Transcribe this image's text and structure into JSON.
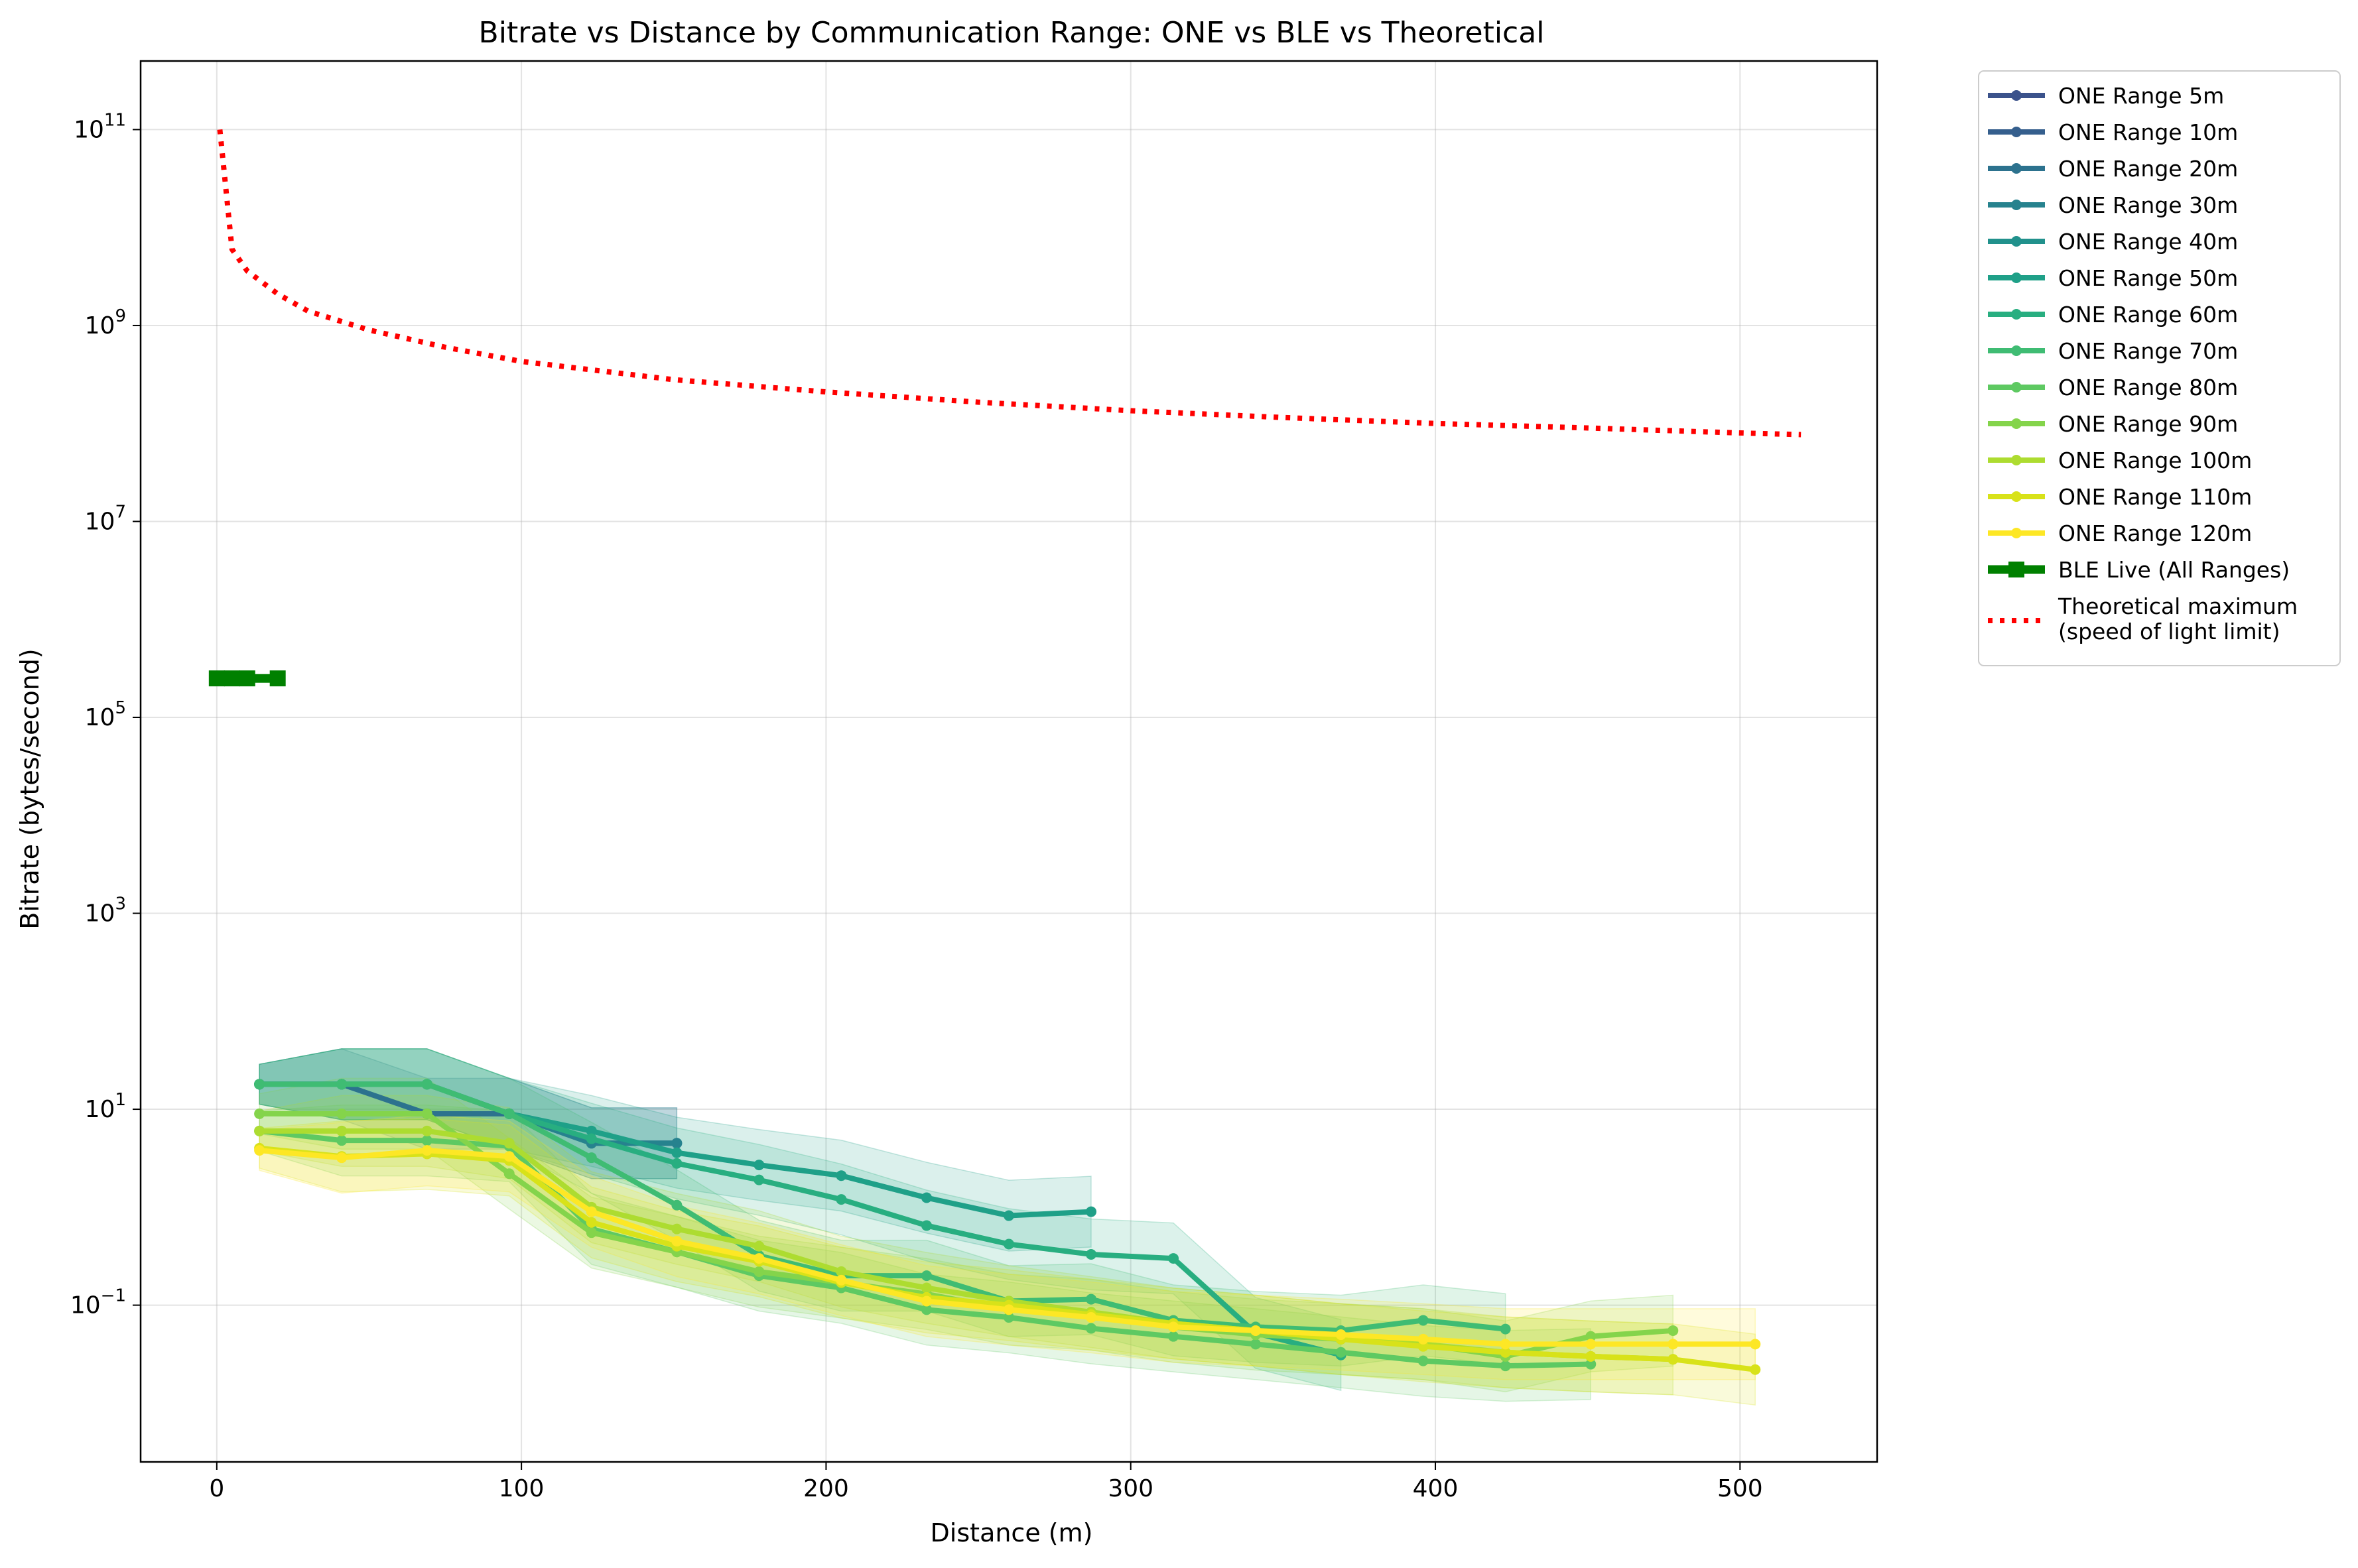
{
  "chart_data": {
    "type": "line",
    "title": "Bitrate vs Distance by Communication Range: ONE vs BLE vs Theoretical",
    "xlabel": "Distance (m)",
    "ylabel": "Bitrate (bytes/second)",
    "xlim": [
      -25,
      545
    ],
    "ylim_log10": [
      -2.6,
      11.7
    ],
    "y_scale": "log",
    "grid": true,
    "legend_position": "outside-right-top",
    "x_ticks": [
      {
        "value": 0,
        "label": "0"
      },
      {
        "value": 100,
        "label": "100"
      },
      {
        "value": 200,
        "label": "200"
      },
      {
        "value": 300,
        "label": "300"
      },
      {
        "value": 400,
        "label": "400"
      },
      {
        "value": 500,
        "label": "500"
      }
    ],
    "y_ticks": [
      {
        "exp": 11,
        "base": "10",
        "sup": "11"
      },
      {
        "exp": 9,
        "base": "10",
        "sup": "9"
      },
      {
        "exp": 7,
        "base": "10",
        "sup": "7"
      },
      {
        "exp": 5,
        "base": "10",
        "sup": "5"
      },
      {
        "exp": 3,
        "base": "10",
        "sup": "3"
      },
      {
        "exp": 1,
        "base": "10",
        "sup": "1"
      },
      {
        "exp": -1,
        "base": "10",
        "sup": "−1"
      }
    ],
    "series": [
      {
        "name": "ONE Range 5m",
        "color": "#3b528b",
        "x": [],
        "y": []
      },
      {
        "name": "ONE Range 10m",
        "color": "#355f8d",
        "x": [],
        "y": []
      },
      {
        "name": "ONE Range 20m",
        "color": "#2c728e",
        "x": [
          14,
          41,
          69,
          96,
          123,
          151
        ],
        "y": [
          18,
          18,
          9,
          9,
          4.5,
          4.5
        ]
      },
      {
        "name": "ONE Range 30m",
        "color": "#26828e",
        "x": [
          14,
          41,
          69,
          96,
          123,
          151
        ],
        "y": [
          18,
          18,
          18,
          9,
          4.5,
          4.5
        ]
      },
      {
        "name": "ONE Range 40m",
        "color": "#21918c",
        "x": [],
        "y": []
      },
      {
        "name": "ONE Range 50m",
        "color": "#1fa088",
        "x": [
          14,
          41,
          69,
          96,
          123,
          151,
          178,
          205,
          233,
          260,
          287
        ],
        "y": [
          18,
          18,
          18,
          9,
          6,
          3.6,
          2.7,
          2.1,
          1.25,
          0.82,
          0.9
        ]
      },
      {
        "name": "ONE Range 60m",
        "color": "#28ae80",
        "x": [
          14,
          41,
          69,
          96,
          123,
          151,
          178,
          205,
          233,
          260,
          287,
          314,
          341,
          369
        ],
        "y": [
          18,
          18,
          18,
          9,
          5,
          2.8,
          1.9,
          1.2,
          0.65,
          0.42,
          0.33,
          0.3,
          0.052,
          0.031
        ]
      },
      {
        "name": "ONE Range 70m",
        "color": "#3fbc73",
        "x": [
          14,
          41,
          69,
          96,
          123,
          151,
          178,
          205,
          233,
          260,
          287,
          314,
          341,
          369,
          396,
          423
        ],
        "y": [
          18,
          18,
          18,
          9,
          3.2,
          1.05,
          0.32,
          0.2,
          0.2,
          0.11,
          0.115,
          0.07,
          0.06,
          0.055,
          0.07,
          0.057
        ]
      },
      {
        "name": "ONE Range 80m",
        "color": "#5ec962",
        "x": [
          14,
          41,
          69,
          96,
          123,
          151,
          178,
          205,
          233,
          260,
          287,
          314,
          341,
          369,
          396,
          423,
          451
        ],
        "y": [
          6,
          4.8,
          4.8,
          4.2,
          0.6,
          0.35,
          0.2,
          0.15,
          0.09,
          0.075,
          0.058,
          0.048,
          0.04,
          0.033,
          0.027,
          0.024,
          0.025
        ]
      },
      {
        "name": "ONE Range 90m",
        "color": "#84d44b",
        "x": [
          14,
          41,
          69,
          96,
          123,
          151,
          178,
          205,
          233,
          260,
          287,
          314,
          341,
          369,
          396,
          423,
          451,
          478
        ],
        "y": [
          9,
          9,
          9,
          2.2,
          0.55,
          0.35,
          0.22,
          0.17,
          0.13,
          0.09,
          0.08,
          0.06,
          0.05,
          0.045,
          0.04,
          0.03,
          0.048,
          0.055
        ]
      },
      {
        "name": "ONE Range 100m",
        "color": "#addc30",
        "x": [
          14,
          41,
          69,
          96,
          123,
          151,
          178,
          205,
          233,
          260,
          287,
          314,
          341,
          369,
          396,
          423,
          451,
          478
        ],
        "y": [
          6,
          6,
          6,
          4.5,
          1.0,
          0.6,
          0.4,
          0.22,
          0.15,
          0.11,
          0.085,
          0.065,
          0.055,
          0.045,
          0.04,
          0.033,
          0.03,
          0.028
        ]
      },
      {
        "name": "ONE Range 110m",
        "color": "#d8e219",
        "x": [
          14,
          41,
          69,
          96,
          123,
          151,
          178,
          205,
          233,
          260,
          287,
          314,
          341,
          369,
          396,
          423,
          451,
          478,
          505
        ],
        "y": [
          4,
          3.3,
          3.5,
          3,
          0.7,
          0.4,
          0.28,
          0.17,
          0.12,
          0.1,
          0.08,
          0.065,
          0.055,
          0.045,
          0.038,
          0.033,
          0.03,
          0.028,
          0.022
        ]
      },
      {
        "name": "ONE Range 120m",
        "color": "#fde725",
        "x": [
          14,
          41,
          69,
          96,
          123,
          151,
          178,
          205,
          233,
          260,
          287,
          314,
          341,
          369,
          396,
          423,
          451,
          478,
          505
        ],
        "y": [
          3.8,
          3.2,
          3.8,
          3.3,
          0.9,
          0.45,
          0.3,
          0.18,
          0.11,
          0.09,
          0.075,
          0.06,
          0.055,
          0.05,
          0.045,
          0.04,
          0.04,
          0.04,
          0.04
        ]
      },
      {
        "name": "BLE Live (All Ranges)",
        "color": "#008000",
        "x": [
          0,
          5,
          10,
          20
        ],
        "y": [
          250000,
          250000,
          250000,
          250000
        ]
      },
      {
        "name": "Theoretical maximum\n(speed of light limit)",
        "color": "#ff0000",
        "dash": "dotted",
        "x": [
          1,
          2,
          5,
          10,
          20,
          30,
          50,
          75,
          100,
          150,
          200,
          250,
          300,
          350,
          400,
          450,
          500,
          520
        ],
        "y": [
          100000000000,
          50000000000,
          6000000000,
          3600000000,
          2100000000,
          1400000000,
          900000000,
          600000000,
          430000000,
          280000000,
          210000000,
          165000000,
          135000000,
          115000000,
          100000000,
          90000000,
          80000000,
          77000000
        ]
      }
    ]
  }
}
